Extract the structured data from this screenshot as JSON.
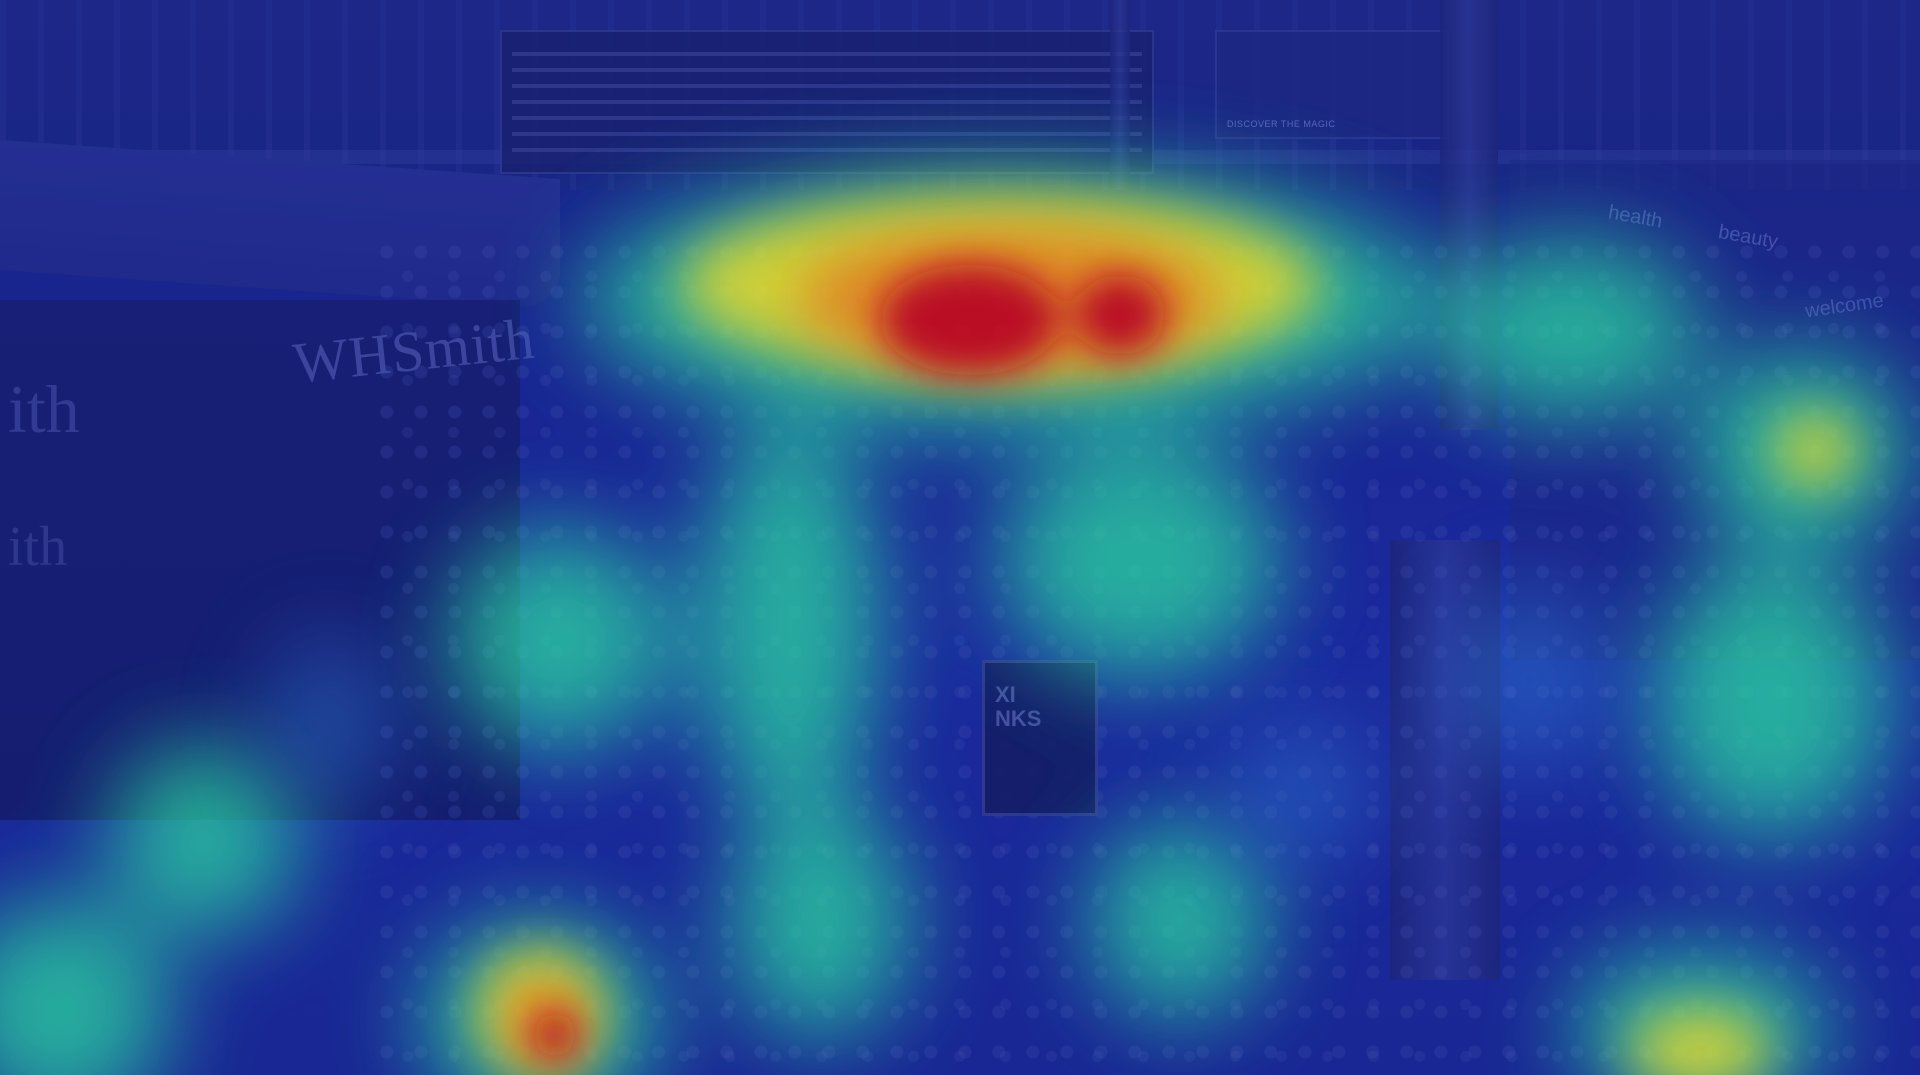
{
  "scene": {
    "kiosk_sign": "WHSmith",
    "kiosk_sign_left": "ith",
    "kiosk_sign_left2": "ith",
    "taxi_sign": "XI\nNKS",
    "shop_word_health": "health",
    "shop_word_beauty": "beauty",
    "shop_word_welcome": "welcome",
    "poster_text": "DISCOVER THE MAGIC"
  },
  "heatmap": {
    "colors": {
      "low": "#1a2799",
      "mid": "#2ad1a0",
      "high_yellow": "#e9e22a",
      "high_orange": "#f08a1c",
      "peak": "#c8101a"
    },
    "blobs": [
      {
        "id": "top-center-peak",
        "level": 1.0
      },
      {
        "id": "top-center-secondary",
        "level": 0.95
      },
      {
        "id": "bottom-left-peak",
        "level": 0.95
      },
      {
        "id": "right-upper",
        "level": 0.7
      },
      {
        "id": "bottom-right",
        "level": 0.7
      }
    ]
  }
}
